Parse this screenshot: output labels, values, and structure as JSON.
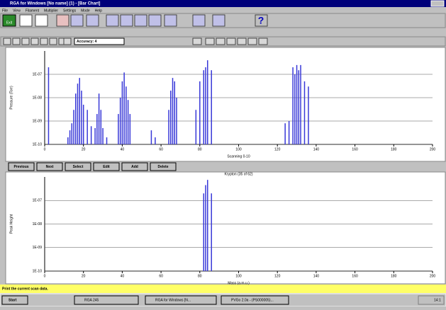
{
  "window": {
    "title": "RGA for Windows [No name] (1) - [Bar Chart]",
    "menu": [
      "File",
      "View",
      "Filament",
      "Multiplier",
      "Settings",
      "Mode",
      "Help"
    ]
  },
  "toolbar": {
    "exit": "Exit",
    "accuracy": "Accuracy: 4"
  },
  "charts": [
    {
      "type": "bar",
      "y_label": "Pressure (Torr)",
      "x_label": "Scanning 0-10",
      "log_y": true,
      "grid": true,
      "color": "#3838d8",
      "xlim": [
        0,
        200
      ],
      "xticks": [
        0,
        20,
        40,
        60,
        80,
        100,
        120,
        140,
        160,
        180,
        200
      ],
      "ylim": [
        1e-10,
        1e-06
      ],
      "yticks": [
        {
          "value": 1e-10,
          "label": "1E-10"
        },
        {
          "value": 1e-09,
          "label": "1E-09"
        },
        {
          "value": 1e-08,
          "label": "1E-08"
        },
        {
          "value": 1e-07,
          "label": "1E-07"
        }
      ],
      "x": [
        2,
        12,
        13,
        14,
        15,
        16,
        17,
        18,
        19,
        20,
        22,
        24,
        26,
        27,
        28,
        29,
        30,
        32,
        38,
        39,
        40,
        41,
        42,
        43,
        44,
        55,
        57,
        64,
        65,
        66,
        67,
        68,
        78,
        80,
        82,
        83,
        84,
        86,
        124,
        126,
        128,
        129,
        130,
        131,
        132,
        134,
        136
      ],
      "values": [
        2e-07,
        2e-10,
        4e-10,
        8e-10,
        3e-09,
        1.5e-08,
        4e-08,
        7e-08,
        2e-08,
        5e-09,
        3e-09,
        6e-10,
        5e-10,
        2e-09,
        1.5e-08,
        3e-09,
        5e-10,
        2e-10,
        2e-09,
        1e-08,
        5e-08,
        1.2e-07,
        3e-08,
        8e-09,
        2e-09,
        4e-10,
        2e-10,
        3e-09,
        2e-08,
        7e-08,
        5e-08,
        1e-08,
        3e-09,
        5e-08,
        1.5e-07,
        2e-07,
        4e-07,
        1.5e-07,
        8e-10,
        1e-09,
        2e-07,
        1e-07,
        2.5e-07,
        1.5e-07,
        2.5e-07,
        5e-08,
        3e-08
      ]
    },
    {
      "type": "bar",
      "title": "Krypton (35 of 62)",
      "y_label": "Peak Height",
      "x_label": "Mass (a.m.u.)",
      "log_y": true,
      "grid": true,
      "color": "#3838d8",
      "xlim": [
        0,
        200
      ],
      "xticks": [
        0,
        20,
        40,
        60,
        80,
        100,
        120,
        140,
        160,
        180,
        200
      ],
      "ylim": [
        1e-10,
        1e-06
      ],
      "yticks": [
        {
          "value": 1e-10,
          "label": "1E-10"
        },
        {
          "value": 1e-09,
          "label": "1E-09"
        },
        {
          "value": 1e-08,
          "label": "1E-08"
        },
        {
          "value": 1e-07,
          "label": "1E-07"
        }
      ],
      "x": [
        82,
        83,
        84,
        86
      ],
      "values": [
        2e-07,
        4.5e-07,
        7.5e-07,
        2e-07
      ]
    }
  ],
  "buttons": [
    "Previous",
    "Next",
    "Select",
    "Edit",
    "Add",
    "Delete"
  ],
  "status": "Print the current scan data.",
  "taskbar": {
    "start": "Start",
    "items": [
      "RGA 245",
      "RGA for Windows [N...",
      "PVGo 2.0a - (PS000005)..."
    ],
    "clock": "14:1"
  }
}
